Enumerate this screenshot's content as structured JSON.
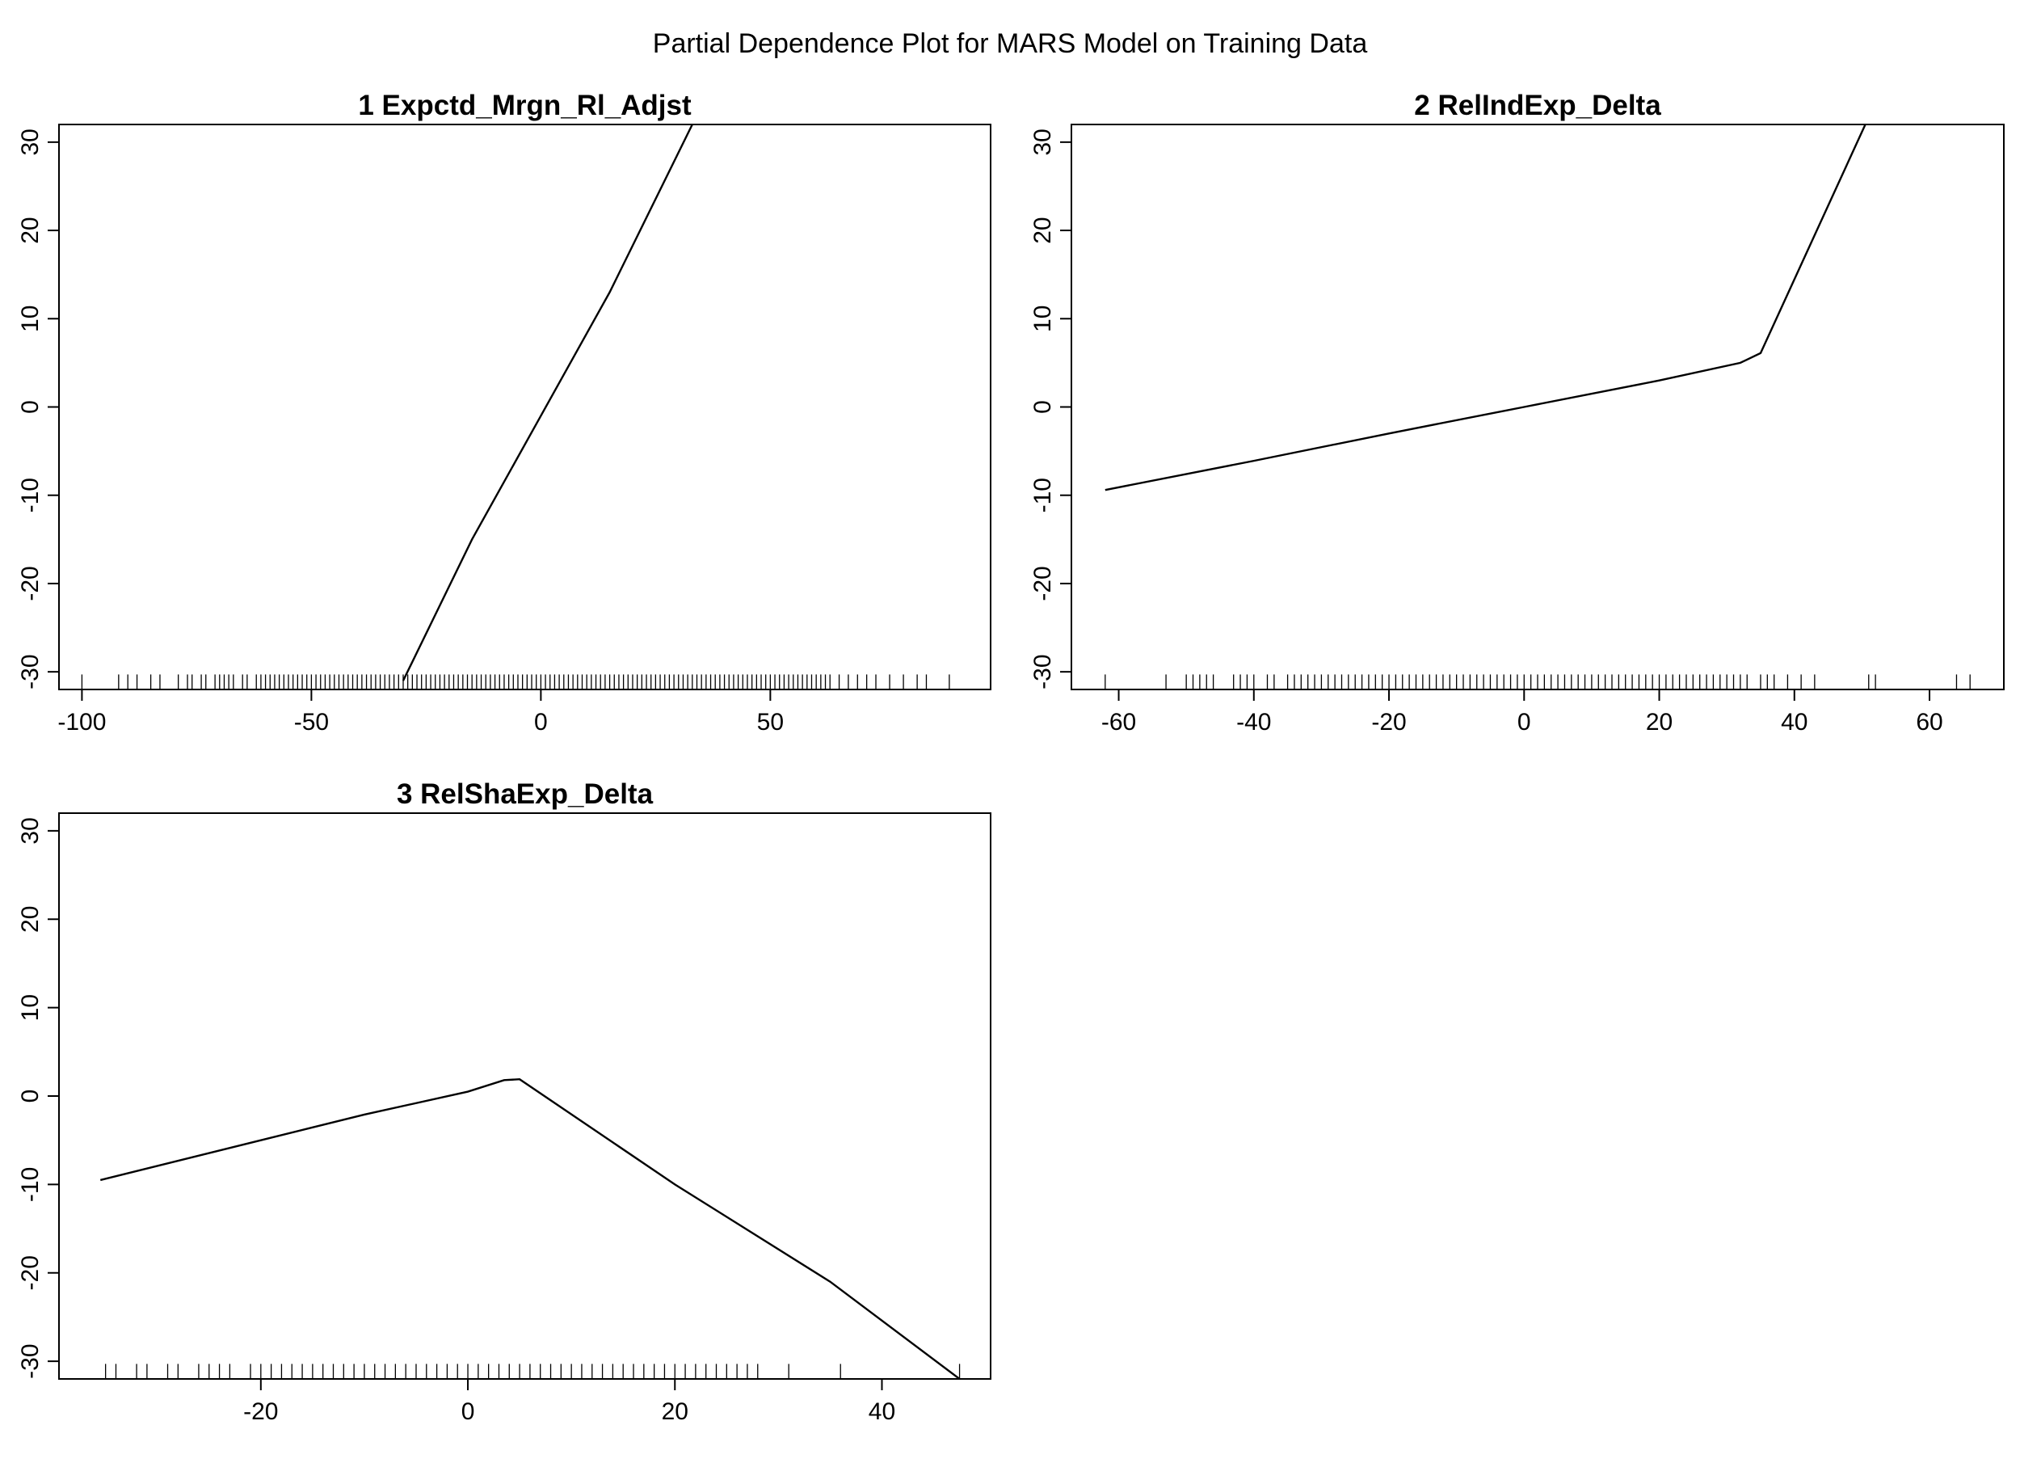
{
  "figure": {
    "title": "Partial Dependence Plot for MARS Model on Training Data"
  },
  "chart_data": [
    {
      "type": "line",
      "title": "1  Expctd_Mrgn_Rl_Adjst",
      "xlabel": "",
      "ylabel": "",
      "xlim": [
        -105,
        98
      ],
      "ylim": [
        -32,
        32
      ],
      "x_ticks": [
        -100,
        -50,
        0,
        50
      ],
      "x_tick_labels": [
        "-100",
        "-50",
        "0",
        "50"
      ],
      "y_ticks": [
        -30,
        -20,
        -10,
        0,
        10,
        20,
        30
      ],
      "y_tick_labels": [
        "-30",
        "-20",
        "-10",
        "0",
        "10",
        "20",
        "30"
      ],
      "grid": false,
      "series": [
        {
          "x": [
            -30,
            -15,
            0,
            15,
            33
          ],
          "y": [
            -31,
            -15,
            -1,
            13,
            32
          ]
        }
      ],
      "rug": [
        -100,
        -92,
        -90,
        -88,
        -85,
        -83,
        -79,
        -77,
        -76,
        -74,
        -73,
        -71,
        -70,
        -69,
        -68,
        -67,
        -65,
        -64,
        -62,
        -61,
        -60,
        -59,
        -58,
        -57,
        -56,
        -55,
        -54,
        -53,
        -52,
        -51,
        -50,
        -49,
        -48,
        -47,
        -46,
        -45,
        -44,
        -43,
        -42,
        -41,
        -40,
        -39,
        -38,
        -37,
        -36,
        -35,
        -34,
        -33,
        -32,
        -31,
        -30,
        -29,
        -28,
        -27,
        -26,
        -25,
        -24,
        -23,
        -22,
        -21,
        -20,
        -19,
        -18,
        -17,
        -16,
        -15,
        -14,
        -13,
        -12,
        -11,
        -10,
        -9,
        -8,
        -7,
        -6,
        -5,
        -4,
        -3,
        -2,
        -1,
        0,
        1,
        2,
        3,
        4,
        5,
        6,
        7,
        8,
        9,
        10,
        11,
        12,
        13,
        14,
        15,
        16,
        17,
        18,
        19,
        20,
        21,
        22,
        23,
        24,
        25,
        26,
        27,
        28,
        29,
        30,
        31,
        32,
        33,
        34,
        35,
        36,
        37,
        38,
        39,
        40,
        41,
        42,
        43,
        44,
        45,
        46,
        47,
        48,
        49,
        50,
        51,
        52,
        53,
        54,
        55,
        56,
        57,
        58,
        59,
        60,
        61,
        62,
        63,
        65,
        67,
        69,
        71,
        73,
        76,
        79,
        82,
        84,
        89
      ]
    },
    {
      "type": "line",
      "title": "2  RelIndExp_Delta",
      "xlabel": "",
      "ylabel": "",
      "xlim": [
        -67,
        71
      ],
      "ylim": [
        -32,
        32
      ],
      "x_ticks": [
        -60,
        -40,
        -20,
        0,
        20,
        40,
        60
      ],
      "x_tick_labels": [
        "-60",
        "-40",
        "-20",
        "0",
        "20",
        "40",
        "60"
      ],
      "y_ticks": [
        -30,
        -20,
        -10,
        0,
        10,
        20,
        30
      ],
      "y_tick_labels": [
        "-30",
        "-20",
        "-10",
        "0",
        "10",
        "20",
        "30"
      ],
      "grid": false,
      "series": [
        {
          "x": [
            -62,
            -40,
            -20,
            0,
            20,
            32,
            35,
            50.5
          ],
          "y": [
            -9.4,
            -6.1,
            -3,
            0,
            3,
            5,
            6.1,
            32
          ]
        }
      ],
      "rug": [
        -62,
        -53,
        -50,
        -49,
        -48,
        -47,
        -46,
        -43,
        -42,
        -41,
        -40,
        -38,
        -37,
        -35,
        -34,
        -33,
        -32,
        -31,
        -30,
        -29,
        -28,
        -27,
        -26,
        -25,
        -24,
        -23,
        -22,
        -21,
        -20,
        -19,
        -18,
        -17,
        -16,
        -15,
        -14,
        -13,
        -12,
        -11,
        -10,
        -9,
        -8,
        -7,
        -6,
        -5,
        -4,
        -3,
        -2,
        -1,
        0,
        1,
        2,
        3,
        4,
        5,
        6,
        7,
        8,
        9,
        10,
        11,
        12,
        13,
        14,
        15,
        16,
        17,
        18,
        19,
        20,
        21,
        22,
        23,
        24,
        25,
        26,
        27,
        28,
        29,
        30,
        31,
        32,
        33,
        35,
        36,
        37,
        39,
        41,
        43,
        51,
        52,
        64,
        66
      ]
    },
    {
      "type": "line",
      "title": "3  RelShaExp_Delta",
      "xlabel": "",
      "ylabel": "",
      "xlim": [
        -39.5,
        50.5
      ],
      "ylim": [
        -32,
        32
      ],
      "x_ticks": [
        -20,
        0,
        20,
        40
      ],
      "x_tick_labels": [
        "-20",
        "0",
        "20",
        "40"
      ],
      "y_ticks": [
        -30,
        -20,
        -10,
        0,
        10,
        20,
        30
      ],
      "y_tick_labels": [
        "-30",
        "-20",
        "-10",
        "0",
        "10",
        "20",
        "30"
      ],
      "grid": false,
      "series": [
        {
          "x": [
            -35.5,
            -20,
            -10,
            0,
            3.5,
            5,
            20,
            35,
            47.5
          ],
          "y": [
            -9.5,
            -5,
            -2.1,
            0.5,
            1.8,
            1.9,
            -10,
            -21,
            -32
          ]
        }
      ],
      "rug": [
        -35,
        -34,
        -32,
        -31,
        -29,
        -28,
        -26,
        -25,
        -24,
        -23,
        -21,
        -20,
        -19,
        -18,
        -17,
        -16,
        -15,
        -14,
        -13,
        -12,
        -11,
        -10,
        -9,
        -8,
        -7,
        -6,
        -5,
        -4,
        -3,
        -2,
        -1,
        0,
        1,
        2,
        3,
        4,
        5,
        6,
        7,
        8,
        9,
        10,
        11,
        12,
        13,
        14,
        15,
        16,
        17,
        18,
        19,
        20,
        21,
        22,
        23,
        24,
        25,
        26,
        27,
        28,
        31,
        36,
        47.5
      ]
    }
  ]
}
